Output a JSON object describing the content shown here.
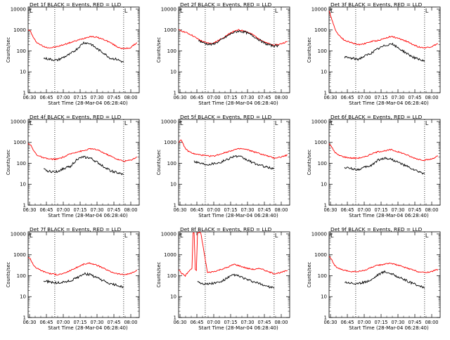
{
  "chart_data": [
    {
      "type": "line",
      "title": "Det 1f BLACK = Events, RED = LLD",
      "xlabel": "Start Time (28-Mar-04 06:28:40)",
      "ylabel": "Counts/sec",
      "x_ticks": [
        "06:30",
        "06:45",
        "07:00",
        "07:15",
        "07:30",
        "07:45",
        "08:00"
      ],
      "y_ticks": [
        "1",
        "10",
        "100",
        "1000",
        "10000"
      ],
      "xlim": [
        0,
        100
      ],
      "ylim_log10": [
        0,
        4.1
      ],
      "vlines": [
        24,
        86
      ],
      "marker": "L",
      "series": [
        {
          "name": "RED = LLD",
          "color": "#ff0000",
          "x": [
            0,
            2,
            5,
            8,
            14,
            20,
            26,
            32,
            38,
            44,
            50,
            56,
            62,
            68,
            74,
            80,
            86,
            92,
            98
          ],
          "log_y": [
            3.0,
            2.95,
            2.6,
            2.4,
            2.2,
            2.15,
            2.2,
            2.3,
            2.4,
            2.5,
            2.6,
            2.7,
            2.65,
            2.55,
            2.4,
            2.2,
            2.1,
            2.15,
            2.4
          ]
        },
        {
          "name": "BLACK = Events",
          "color": "#000000",
          "x": [
            14,
            20,
            26,
            32,
            38,
            44,
            50,
            56,
            62,
            68,
            74,
            80,
            86
          ],
          "log_y": [
            1.65,
            1.6,
            1.55,
            1.7,
            1.85,
            2.1,
            2.4,
            2.35,
            2.1,
            1.9,
            1.65,
            1.6,
            1.45
          ]
        }
      ]
    },
    {
      "type": "line",
      "title": "Det 2f BLACK = Events, RED = LLD",
      "xlabel": "Start Time (28-Mar-04 06:28:40)",
      "ylabel": "Counts/sec",
      "x_ticks": [
        "06:30",
        "06:45",
        "07:00",
        "07:15",
        "07:30",
        "07:45",
        "08:00"
      ],
      "y_ticks": [
        "1",
        "10",
        "100",
        "1000",
        "10000"
      ],
      "xlim": [
        0,
        100
      ],
      "ylim_log10": [
        0,
        4.1
      ],
      "vlines": [
        24,
        86
      ],
      "marker": "L",
      "series": [
        {
          "name": "RED = LLD",
          "color": "#ff0000",
          "x": [
            0,
            6,
            12,
            18,
            24,
            30,
            36,
            42,
            48,
            54,
            60,
            66,
            72,
            78,
            84,
            90,
            98
          ],
          "log_y": [
            3.0,
            2.9,
            2.75,
            2.55,
            2.4,
            2.35,
            2.5,
            2.7,
            2.9,
            3.0,
            2.95,
            2.8,
            2.6,
            2.4,
            2.3,
            2.3,
            2.45
          ]
        },
        {
          "name": "BLACK = Events",
          "color": "#000000",
          "x": [
            18,
            24,
            30,
            36,
            42,
            48,
            54,
            60,
            66,
            72,
            78,
            84,
            90
          ],
          "log_y": [
            2.5,
            2.35,
            2.3,
            2.45,
            2.65,
            2.85,
            2.95,
            2.9,
            2.75,
            2.55,
            2.35,
            2.25,
            2.25
          ]
        }
      ]
    },
    {
      "type": "line",
      "title": "Det 3f BLACK = Events, RED = LLD",
      "xlabel": "Start Time (28-Mar-04 06:28:40)",
      "ylabel": "Counts/sec",
      "x_ticks": [
        "06:30",
        "06:45",
        "07:00",
        "07:15",
        "07:30",
        "07:45",
        "08:00"
      ],
      "y_ticks": [
        "1",
        "10",
        "100",
        "1000",
        "10000"
      ],
      "xlim": [
        0,
        100
      ],
      "ylim_log10": [
        0,
        4.1
      ],
      "vlines": [
        24,
        86
      ],
      "marker": "L",
      "series": [
        {
          "name": "RED = LLD",
          "color": "#ff0000",
          "x": [
            0,
            2,
            5,
            8,
            14,
            20,
            26,
            32,
            38,
            44,
            50,
            56,
            62,
            68,
            74,
            80,
            86,
            92,
            98
          ],
          "log_y": [
            3.9,
            3.6,
            3.1,
            2.8,
            2.5,
            2.4,
            2.3,
            2.35,
            2.45,
            2.5,
            2.6,
            2.7,
            2.6,
            2.5,
            2.35,
            2.2,
            2.15,
            2.2,
            2.35
          ]
        },
        {
          "name": "BLACK = Events",
          "color": "#000000",
          "x": [
            14,
            20,
            26,
            32,
            38,
            44,
            50,
            56,
            62,
            68,
            74,
            80,
            86
          ],
          "log_y": [
            1.7,
            1.65,
            1.6,
            1.75,
            1.9,
            2.1,
            2.25,
            2.35,
            2.15,
            1.95,
            1.75,
            1.6,
            1.5
          ]
        }
      ]
    },
    {
      "type": "line",
      "title": "Det 4f BLACK = Events, RED = LLD",
      "xlabel": "Start Time (28-Mar-04 06:28:40)",
      "ylabel": "Counts/sec",
      "x_ticks": [
        "06:30",
        "06:45",
        "07:00",
        "07:15",
        "07:30",
        "07:45",
        "08:00"
      ],
      "y_ticks": [
        "1",
        "10",
        "100",
        "1000",
        "10000"
      ],
      "xlim": [
        0,
        100
      ],
      "ylim_log10": [
        0,
        4.1
      ],
      "vlines": [
        24,
        86
      ],
      "marker": "L",
      "series": [
        {
          "name": "RED = LLD",
          "color": "#ff0000",
          "x": [
            0,
            2,
            5,
            8,
            14,
            20,
            26,
            32,
            38,
            44,
            50,
            56,
            62,
            68,
            74,
            80,
            86,
            92,
            98
          ],
          "log_y": [
            2.95,
            2.9,
            2.6,
            2.4,
            2.25,
            2.2,
            2.2,
            2.3,
            2.45,
            2.55,
            2.6,
            2.7,
            2.65,
            2.5,
            2.35,
            2.2,
            2.1,
            2.15,
            2.3
          ]
        },
        {
          "name": "BLACK = Events",
          "color": "#000000",
          "x": [
            14,
            20,
            26,
            32,
            38,
            44,
            50,
            56,
            62,
            68,
            74,
            80,
            86
          ],
          "log_y": [
            1.7,
            1.6,
            1.6,
            1.75,
            1.85,
            2.2,
            2.3,
            2.25,
            2.05,
            1.85,
            1.65,
            1.55,
            1.45
          ]
        }
      ]
    },
    {
      "type": "line",
      "title": "Det 5f BLACK = Events, RED = LLD",
      "xlabel": "Start Time (28-Mar-04 06:28:40)",
      "ylabel": "Counts/sec",
      "x_ticks": [
        "06:30",
        "06:45",
        "07:00",
        "07:15",
        "07:30",
        "07:45",
        "08:00"
      ],
      "y_ticks": [
        "1",
        "10",
        "100",
        "1000",
        "10000"
      ],
      "xlim": [
        0,
        100
      ],
      "ylim_log10": [
        0,
        4.1
      ],
      "vlines": [
        24,
        86
      ],
      "marker": "L",
      "series": [
        {
          "name": "RED = LLD",
          "color": "#ff0000",
          "x": [
            0,
            2,
            5,
            8,
            14,
            20,
            26,
            32,
            38,
            44,
            50,
            56,
            62,
            68,
            74,
            80,
            86,
            92,
            98
          ],
          "log_y": [
            3.0,
            3.15,
            2.8,
            2.6,
            2.45,
            2.4,
            2.35,
            2.35,
            2.45,
            2.55,
            2.65,
            2.7,
            2.65,
            2.55,
            2.45,
            2.35,
            2.25,
            2.3,
            2.4
          ]
        },
        {
          "name": "BLACK = Events",
          "color": "#000000",
          "x": [
            14,
            20,
            26,
            32,
            38,
            44,
            50,
            56,
            62,
            68,
            74,
            80,
            86
          ],
          "log_y": [
            2.1,
            2.0,
            1.95,
            2.0,
            2.05,
            2.2,
            2.35,
            2.3,
            2.15,
            2.0,
            1.9,
            1.8,
            1.75
          ]
        }
      ]
    },
    {
      "type": "line",
      "title": "Det 6f BLACK = Events, RED = LLD",
      "xlabel": "Start Time (28-Mar-04 06:28:40)",
      "ylabel": "Counts/sec",
      "x_ticks": [
        "06:30",
        "06:45",
        "07:00",
        "07:15",
        "07:30",
        "07:45",
        "08:00"
      ],
      "y_ticks": [
        "1",
        "10",
        "100",
        "1000",
        "10000"
      ],
      "xlim": [
        0,
        100
      ],
      "ylim_log10": [
        0,
        4.1
      ],
      "vlines": [
        24,
        86
      ],
      "marker": "L",
      "series": [
        {
          "name": "RED = LLD",
          "color": "#ff0000",
          "x": [
            0,
            2,
            5,
            8,
            14,
            20,
            26,
            32,
            38,
            44,
            50,
            56,
            62,
            68,
            74,
            80,
            86,
            92,
            98
          ],
          "log_y": [
            2.95,
            2.8,
            2.55,
            2.4,
            2.3,
            2.25,
            2.25,
            2.3,
            2.45,
            2.55,
            2.6,
            2.65,
            2.55,
            2.45,
            2.3,
            2.2,
            2.15,
            2.2,
            2.35
          ]
        },
        {
          "name": "BLACK = Events",
          "color": "#000000",
          "x": [
            14,
            20,
            26,
            32,
            38,
            44,
            50,
            56,
            62,
            68,
            74,
            80,
            86
          ],
          "log_y": [
            1.8,
            1.75,
            1.7,
            1.8,
            1.9,
            2.15,
            2.25,
            2.2,
            2.05,
            1.9,
            1.75,
            1.6,
            1.5
          ]
        }
      ]
    },
    {
      "type": "line",
      "title": "Det 7f BLACK = Events, RED = LLD",
      "xlabel": "Start Time (28-Mar-04 06:28:40)",
      "ylabel": "Counts/sec",
      "x_ticks": [
        "06:30",
        "06:45",
        "07:00",
        "07:15",
        "07:30",
        "07:45",
        "08:00"
      ],
      "y_ticks": [
        "1",
        "10",
        "100",
        "1000",
        "10000"
      ],
      "xlim": [
        0,
        100
      ],
      "ylim_log10": [
        0,
        4.1
      ],
      "vlines": [
        24,
        86
      ],
      "marker": "L",
      "series": [
        {
          "name": "RED = LLD",
          "color": "#ff0000",
          "x": [
            0,
            2,
            5,
            8,
            14,
            20,
            26,
            32,
            38,
            44,
            50,
            56,
            62,
            68,
            74,
            80,
            86,
            92,
            98
          ],
          "log_y": [
            2.9,
            2.8,
            2.5,
            2.35,
            2.2,
            2.1,
            2.05,
            2.1,
            2.25,
            2.4,
            2.55,
            2.6,
            2.5,
            2.35,
            2.2,
            2.1,
            2.05,
            2.1,
            2.25
          ]
        },
        {
          "name": "BLACK = Events",
          "color": "#000000",
          "x": [
            14,
            20,
            26,
            32,
            38,
            44,
            50,
            56,
            62,
            68,
            74,
            80,
            86
          ],
          "log_y": [
            1.75,
            1.7,
            1.65,
            1.7,
            1.75,
            1.9,
            2.1,
            2.05,
            1.9,
            1.75,
            1.6,
            1.55,
            1.45
          ]
        }
      ]
    },
    {
      "type": "line",
      "title": "Det 8f BLACK = Events, RED = LLD",
      "xlabel": "Start Time (28-Mar-04 06:28:40)",
      "ylabel": "Counts/sec",
      "x_ticks": [
        "06:30",
        "06:45",
        "07:00",
        "07:15",
        "07:30",
        "07:45",
        "08:00"
      ],
      "y_ticks": [
        "1",
        "10",
        "100",
        "1000",
        "10000"
      ],
      "xlim": [
        0,
        100
      ],
      "ylim_log10": [
        0,
        4.1
      ],
      "vlines": [
        24,
        86
      ],
      "marker": "L",
      "series": [
        {
          "name": "RED = LLD",
          "color": "#ff0000",
          "x": [
            0,
            3,
            6,
            9,
            12,
            13,
            14,
            15,
            16,
            17,
            20,
            26,
            32,
            38,
            44,
            50,
            56,
            62,
            68,
            74,
            80,
            86,
            92,
            98
          ],
          "log_y": [
            2.3,
            2.1,
            2.0,
            2.2,
            2.35,
            4.05,
            4.05,
            2.3,
            2.25,
            4.05,
            4.05,
            2.15,
            2.2,
            2.3,
            2.4,
            2.55,
            2.45,
            2.35,
            2.3,
            2.35,
            2.2,
            2.1,
            2.15,
            2.25
          ]
        },
        {
          "name": "BLACK = Events",
          "color": "#000000",
          "x": [
            17,
            20,
            26,
            32,
            38,
            44,
            50,
            56,
            62,
            68,
            74,
            80,
            86
          ],
          "log_y": [
            1.75,
            1.65,
            1.6,
            1.65,
            1.7,
            1.9,
            2.05,
            1.95,
            1.8,
            1.7,
            1.6,
            1.5,
            1.4
          ]
        }
      ]
    },
    {
      "type": "line",
      "title": "Det 9f BLACK = Events, RED = LLD",
      "xlabel": "Start Time (28-Mar-04 06:28:40)",
      "ylabel": "Counts/sec",
      "x_ticks": [
        "06:30",
        "06:45",
        "07:00",
        "07:15",
        "07:30",
        "07:45",
        "08:00"
      ],
      "y_ticks": [
        "1",
        "10",
        "100",
        "1000",
        "10000"
      ],
      "xlim": [
        0,
        100
      ],
      "ylim_log10": [
        0,
        4.1
      ],
      "vlines": [
        24,
        86
      ],
      "marker": "L",
      "series": [
        {
          "name": "RED = LLD",
          "color": "#ff0000",
          "x": [
            0,
            2,
            5,
            8,
            14,
            20,
            26,
            32,
            38,
            44,
            50,
            56,
            62,
            68,
            74,
            80,
            86,
            92,
            98
          ],
          "log_y": [
            2.95,
            2.8,
            2.5,
            2.35,
            2.25,
            2.2,
            2.2,
            2.25,
            2.4,
            2.5,
            2.55,
            2.6,
            2.5,
            2.4,
            2.3,
            2.2,
            2.15,
            2.2,
            2.3
          ]
        },
        {
          "name": "BLACK = Events",
          "color": "#000000",
          "x": [
            14,
            20,
            26,
            32,
            38,
            44,
            50,
            56,
            62,
            68,
            74,
            80,
            86
          ],
          "log_y": [
            1.7,
            1.65,
            1.6,
            1.7,
            1.8,
            2.05,
            2.2,
            2.1,
            1.95,
            1.8,
            1.65,
            1.55,
            1.4
          ]
        }
      ]
    }
  ]
}
